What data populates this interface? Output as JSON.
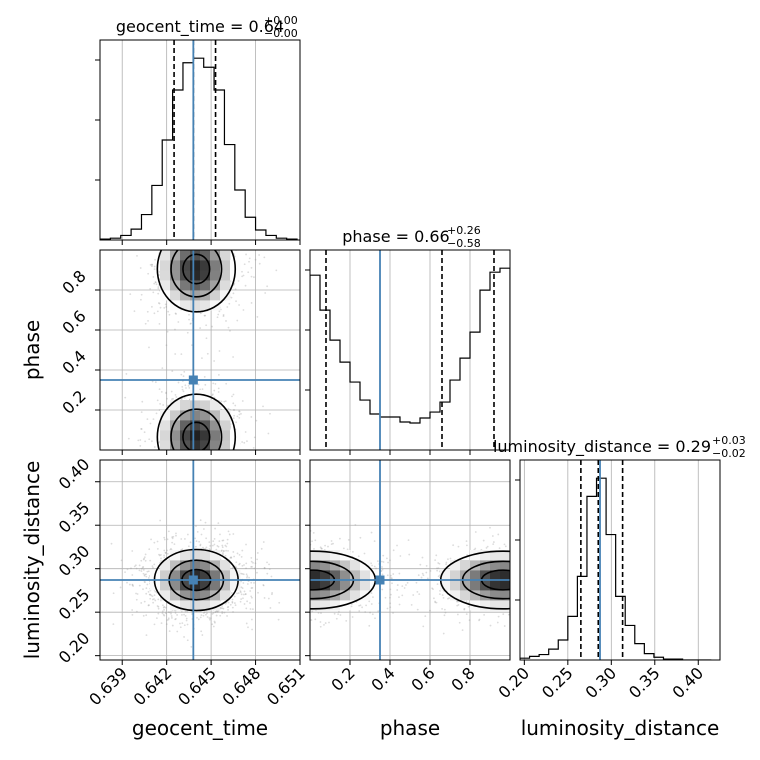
{
  "chart_data": {
    "type": "corner",
    "truth_color": "#4682b4",
    "parameters": [
      {
        "name": "geocent_time",
        "label": "geocent_time",
        "title": {
          "prefix": "geocent_time = 0.64",
          "upper": "+0.00",
          "lower": "−0.00"
        },
        "range": [
          0.6375,
          0.651
        ],
        "ticks": [
          "0.639",
          "0.642",
          "0.645",
          "0.648",
          "0.651"
        ],
        "truth": 0.6438,
        "quantiles": [
          0.6425,
          0.6438,
          0.6453
        ],
        "hist_bins": [
          0.6375,
          0.6382,
          0.6389,
          0.6396,
          0.6403,
          0.641,
          0.6417,
          0.6424,
          0.6431,
          0.6438,
          0.6445,
          0.6452,
          0.6459,
          0.6466,
          0.6473,
          0.648,
          0.6487,
          0.6494,
          0.6501,
          0.6508
        ],
        "hist_counts": [
          1,
          2,
          5,
          12,
          28,
          60,
          110,
          165,
          195,
          200,
          190,
          165,
          105,
          55,
          25,
          11,
          5,
          2,
          1
        ]
      },
      {
        "name": "phase",
        "label": "phase",
        "title": {
          "prefix": "phase = 0.66",
          "upper": "+0.26",
          "lower": "−0.58"
        },
        "range": [
          0.0,
          1.0
        ],
        "ticks": [
          "0.2",
          "0.4",
          "0.6",
          "0.8"
        ],
        "truth": 0.35,
        "quantiles": [
          0.08,
          0.66,
          0.92
        ],
        "hist_bins": [
          0.0,
          0.05,
          0.1,
          0.15,
          0.2,
          0.25,
          0.3,
          0.35,
          0.4,
          0.45,
          0.5,
          0.55,
          0.6,
          0.65,
          0.7,
          0.75,
          0.8,
          0.85,
          0.9,
          0.95,
          1.0
        ],
        "hist_counts": [
          175,
          140,
          110,
          88,
          68,
          50,
          36,
          33,
          33,
          28,
          27,
          32,
          38,
          48,
          70,
          92,
          118,
          160,
          178,
          182
        ]
      },
      {
        "name": "luminosity_distance",
        "label": "luminosity_distance",
        "title": {
          "prefix": "luminosity_distance = 0.29",
          "upper": "+0.03",
          "lower": "−0.02"
        },
        "range": [
          0.195,
          0.425
        ],
        "ticks": [
          "0.20",
          "0.25",
          "0.30",
          "0.35",
          "0.40"
        ],
        "truth": 0.287,
        "quantiles": [
          0.265,
          0.285,
          0.313
        ],
        "hist_bins": [
          0.195,
          0.206,
          0.217,
          0.228,
          0.239,
          0.25,
          0.261,
          0.272,
          0.283,
          0.294,
          0.305,
          0.316,
          0.327,
          0.338,
          0.349,
          0.36,
          0.371,
          0.382,
          0.393,
          0.404,
          0.415
        ],
        "hist_counts": [
          2,
          4,
          6,
          12,
          22,
          48,
          92,
          180,
          200,
          138,
          70,
          38,
          18,
          7,
          3,
          1,
          1,
          0,
          0,
          0
        ]
      }
    ],
    "contours": [
      {
        "x": "geocent_time",
        "y": "phase",
        "blobs": [
          {
            "cx": 0.644,
            "cy": 0.905,
            "sx": 0.00135,
            "sy": 0.11
          },
          {
            "cx": 0.644,
            "cy": 0.065,
            "sx": 0.00135,
            "sy": 0.11
          }
        ]
      },
      {
        "x": "geocent_time",
        "y": "luminosity_distance",
        "blobs": [
          {
            "cx": 0.644,
            "cy": 0.287,
            "sx": 0.00145,
            "sy": 0.018
          }
        ]
      },
      {
        "x": "phase",
        "y": "luminosity_distance",
        "blobs": [
          {
            "cx": 0.015,
            "cy": 0.287,
            "sx": 0.16,
            "sy": 0.017
          },
          {
            "cx": 0.965,
            "cy": 0.287,
            "sx": 0.16,
            "sy": 0.017
          }
        ]
      }
    ]
  }
}
